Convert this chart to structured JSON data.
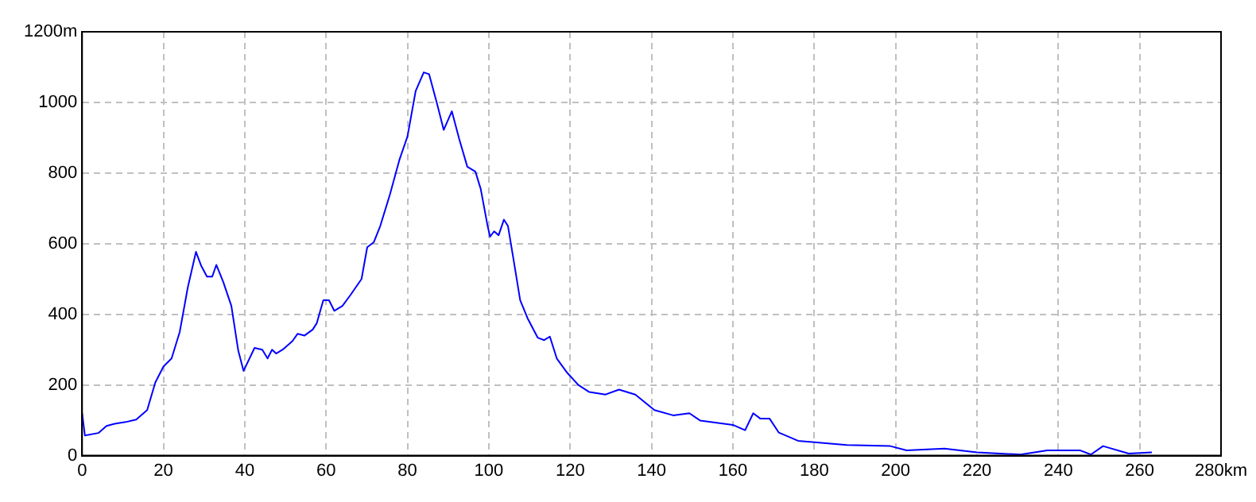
{
  "chart_data": {
    "type": "line",
    "x": [
      0,
      0.7,
      4,
      6,
      8,
      10.7,
      13.3,
      16,
      18,
      20,
      22,
      24,
      26,
      28,
      29.3,
      30.7,
      32,
      33,
      34.7,
      36.7,
      38.4,
      39.7,
      42.4,
      44.3,
      45.6,
      46.7,
      47.7,
      49.3,
      51.7,
      53,
      54.7,
      56.7,
      57.7,
      59.3,
      60.7,
      62,
      64,
      66,
      68.7,
      70.1,
      71.7,
      73.3,
      75.7,
      78,
      80,
      82,
      84,
      85.3,
      87.3,
      88.9,
      90.9,
      92.7,
      94.7,
      96.7,
      98,
      99.7,
      100.3,
      101.3,
      102.4,
      103.7,
      104.7,
      106,
      107.7,
      109.6,
      112,
      113.6,
      115,
      116.7,
      119.3,
      122,
      124.7,
      128.7,
      132,
      136,
      140.7,
      145.3,
      149.3,
      152,
      160,
      163,
      165,
      166.7,
      169,
      171.3,
      176,
      180,
      188,
      198.7,
      202.7,
      212,
      220,
      230.7,
      237.3,
      245.3,
      248,
      251,
      257.3,
      263
    ],
    "series": [
      {
        "color": "#0000ff",
        "values": [
          120,
          57,
          64,
          84,
          90,
          95,
          102,
          129,
          207,
          252,
          275,
          350,
          477,
          577,
          537,
          507,
          507,
          540,
          492,
          424,
          297,
          240,
          305,
          300,
          275,
          300,
          289,
          300,
          324,
          345,
          340,
          357,
          375,
          440,
          440,
          410,
          424,
          455,
          500,
          590,
          604,
          650,
          740,
          837,
          904,
          1032,
          1085,
          1080,
          995,
          922,
          975,
          897,
          818,
          804,
          755,
          650,
          620,
          635,
          624,
          668,
          650,
          560,
          440,
          387,
          334,
          327,
          337,
          275,
          234,
          200,
          180,
          173,
          187,
          173,
          129,
          114,
          120,
          99,
          87,
          72,
          120,
          105,
          105,
          65,
          42,
          38,
          30,
          27,
          15,
          20,
          9,
          3,
          15,
          15,
          3,
          27,
          6,
          9
        ]
      }
    ],
    "xlim": [
      0,
      280
    ],
    "ylim": [
      0,
      1200
    ],
    "xticks": [
      0,
      20,
      40,
      60,
      80,
      100,
      120,
      140,
      160,
      180,
      200,
      220,
      240,
      260,
      {
        "value": 280,
        "label": "280km"
      }
    ],
    "yticks": [
      0,
      200,
      400,
      600,
      800,
      1000,
      {
        "value": 1200,
        "label": "1200m"
      }
    ],
    "grid": true,
    "legend": false,
    "marker": "none",
    "line_style": "solid"
  }
}
